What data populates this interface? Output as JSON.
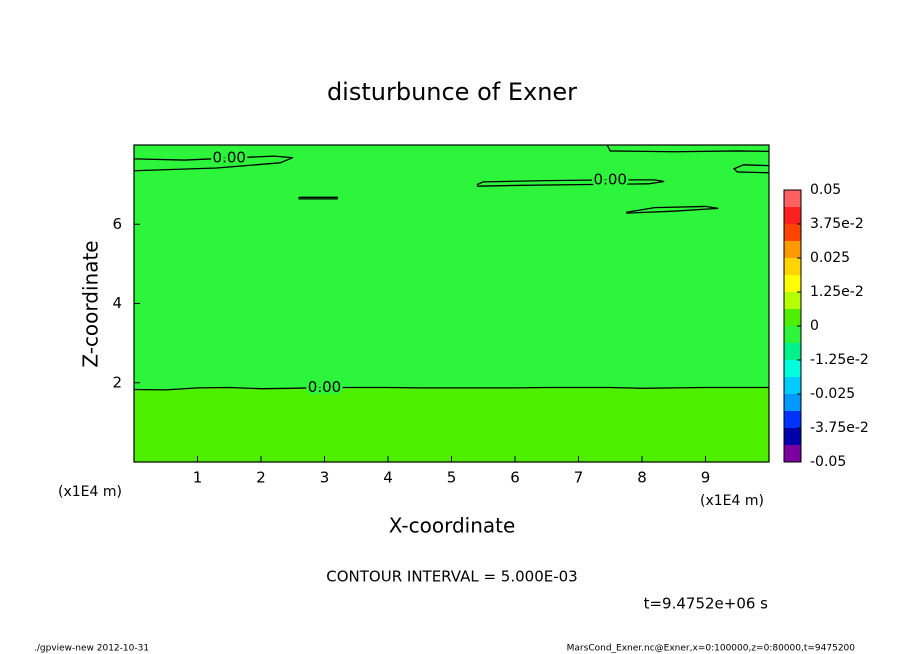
{
  "chart_data": {
    "type": "contour",
    "title": "disturbunce of Exner",
    "xlabel": "X-coordinate",
    "ylabel": "Z-coordinate",
    "x_unit": "(x1E4 m)",
    "y_unit": "(x1E4 m)",
    "xlim": [
      0,
      10
    ],
    "ylim": [
      0,
      8
    ],
    "xticks": [
      1,
      2,
      3,
      4,
      5,
      6,
      7,
      8,
      9
    ],
    "yticks": [
      2,
      4,
      6
    ],
    "background": "#2df53c",
    "line_color": "#000000",
    "contours": [
      {
        "label": "0.00",
        "fill_below": "#4ef000",
        "x": [
          0,
          0.5,
          1,
          1.5,
          2,
          2.5,
          3,
          3.5,
          4,
          4.5,
          5,
          5.5,
          6,
          6.5,
          7,
          7.5,
          8,
          8.5,
          9,
          9.5,
          10
        ],
        "y": [
          1.83,
          1.82,
          1.87,
          1.88,
          1.85,
          1.86,
          1.88,
          1.88,
          1.88,
          1.87,
          1.87,
          1.87,
          1.87,
          1.88,
          1.88,
          1.88,
          1.86,
          1.87,
          1.88,
          1.88,
          1.88
        ]
      },
      {
        "label": "0.00",
        "x": [
          0,
          0.8,
          1.5,
          2.2,
          2.5,
          2.3,
          1.3,
          0
        ],
        "y": [
          7.65,
          7.62,
          7.67,
          7.72,
          7.68,
          7.55,
          7.42,
          7.35
        ]
      },
      {
        "label": "0.00",
        "x": [
          5.4,
          5.5,
          6.5,
          7.5,
          8.2,
          8.35,
          8.1,
          7,
          6,
          5.4
        ],
        "y": [
          7.0,
          7.07,
          7.1,
          7.12,
          7.12,
          7.08,
          7.02,
          7.0,
          6.98,
          6.96
        ]
      },
      {
        "x": [
          7.75,
          8.2,
          9,
          9.2,
          8.5,
          7.75
        ],
        "y": [
          6.3,
          6.42,
          6.45,
          6.4,
          6.33,
          6.28
        ]
      },
      {
        "x": [
          7.45,
          7.5,
          8.5,
          9.5,
          10
        ],
        "y": [
          8,
          7.85,
          7.83,
          7.85,
          7.84
        ]
      },
      {
        "x": [
          10,
          9.5,
          9.45,
          9.6,
          10
        ],
        "y": [
          7.3,
          7.32,
          7.4,
          7.5,
          7.48
        ]
      },
      {
        "x": [
          2.6,
          3.2,
          3.2,
          2.6,
          2.6
        ],
        "y": [
          6.68,
          6.68,
          6.64,
          6.64,
          6.68
        ]
      }
    ],
    "colorbar": {
      "clim": [
        -0.05,
        0.05
      ],
      "levels": [
        -0.05,
        -0.04375,
        -0.0375,
        -0.03125,
        -0.025,
        -0.01875,
        -0.0125,
        -0.00625,
        0,
        0.00625,
        0.0125,
        0.01875,
        0.025,
        0.03125,
        0.0375,
        0.04375,
        0.05
      ],
      "colors": [
        "#7a00a0",
        "#0000aa",
        "#0033ff",
        "#0099ff",
        "#00ccff",
        "#00ffdd",
        "#00f08c",
        "#2df53c",
        "#4ef000",
        "#b4ff00",
        "#ffff00",
        "#ffd400",
        "#ff9900",
        "#ff4400",
        "#ff2020",
        "#ff6060"
      ],
      "ticks": [
        -0.05,
        {
          "value": -0.0375,
          "label": "-3.75e-2"
        },
        -0.025,
        {
          "value": -0.0125,
          "label": "-1.25e-2"
        },
        0,
        {
          "value": 0.0125,
          "label": "1.25e-2"
        },
        0.025,
        {
          "value": 0.0375,
          "label": "3.75e-2"
        },
        0.05
      ]
    },
    "note": "CONTOUR INTERVAL = 5.000E-03",
    "time_label": "t=9.4752e+06 s",
    "footer_left": "./gpview-new  2012-10-31",
    "footer_right": "MarsCond_Exner.nc@Exner,x=0:100000,z=0:80000,t=9475200"
  }
}
